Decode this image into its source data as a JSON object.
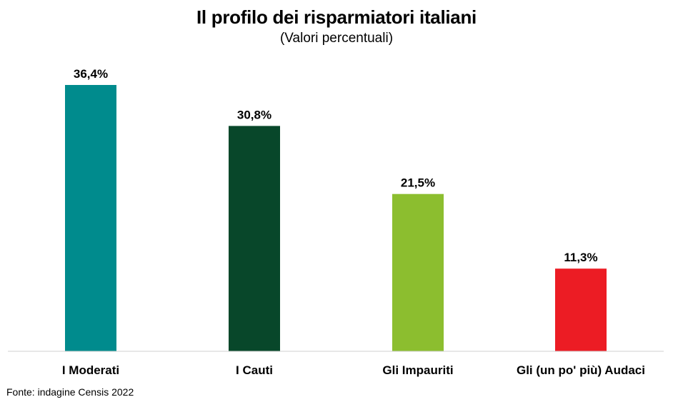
{
  "chart_data": {
    "type": "bar",
    "title": "Il profilo dei risparmiatori italiani",
    "subtitle": "(Valori percentuali)",
    "categories": [
      "I Moderati",
      "I Cauti",
      "Gli Impauriti",
      "Gli (un po' più) Audaci"
    ],
    "values": [
      36.4,
      30.8,
      21.5,
      11.3
    ],
    "value_labels": [
      "36,4%",
      "30,8%",
      "21,5%",
      "11,3%"
    ],
    "colors": [
      "#008B8D",
      "#08472A",
      "#8CBE2F",
      "#EC1C24"
    ],
    "ylim": [
      0,
      36.4
    ],
    "grid": false,
    "legend": "none",
    "xlabel": "",
    "ylabel": ""
  },
  "source": "Fonte: indagine Censis 2022"
}
